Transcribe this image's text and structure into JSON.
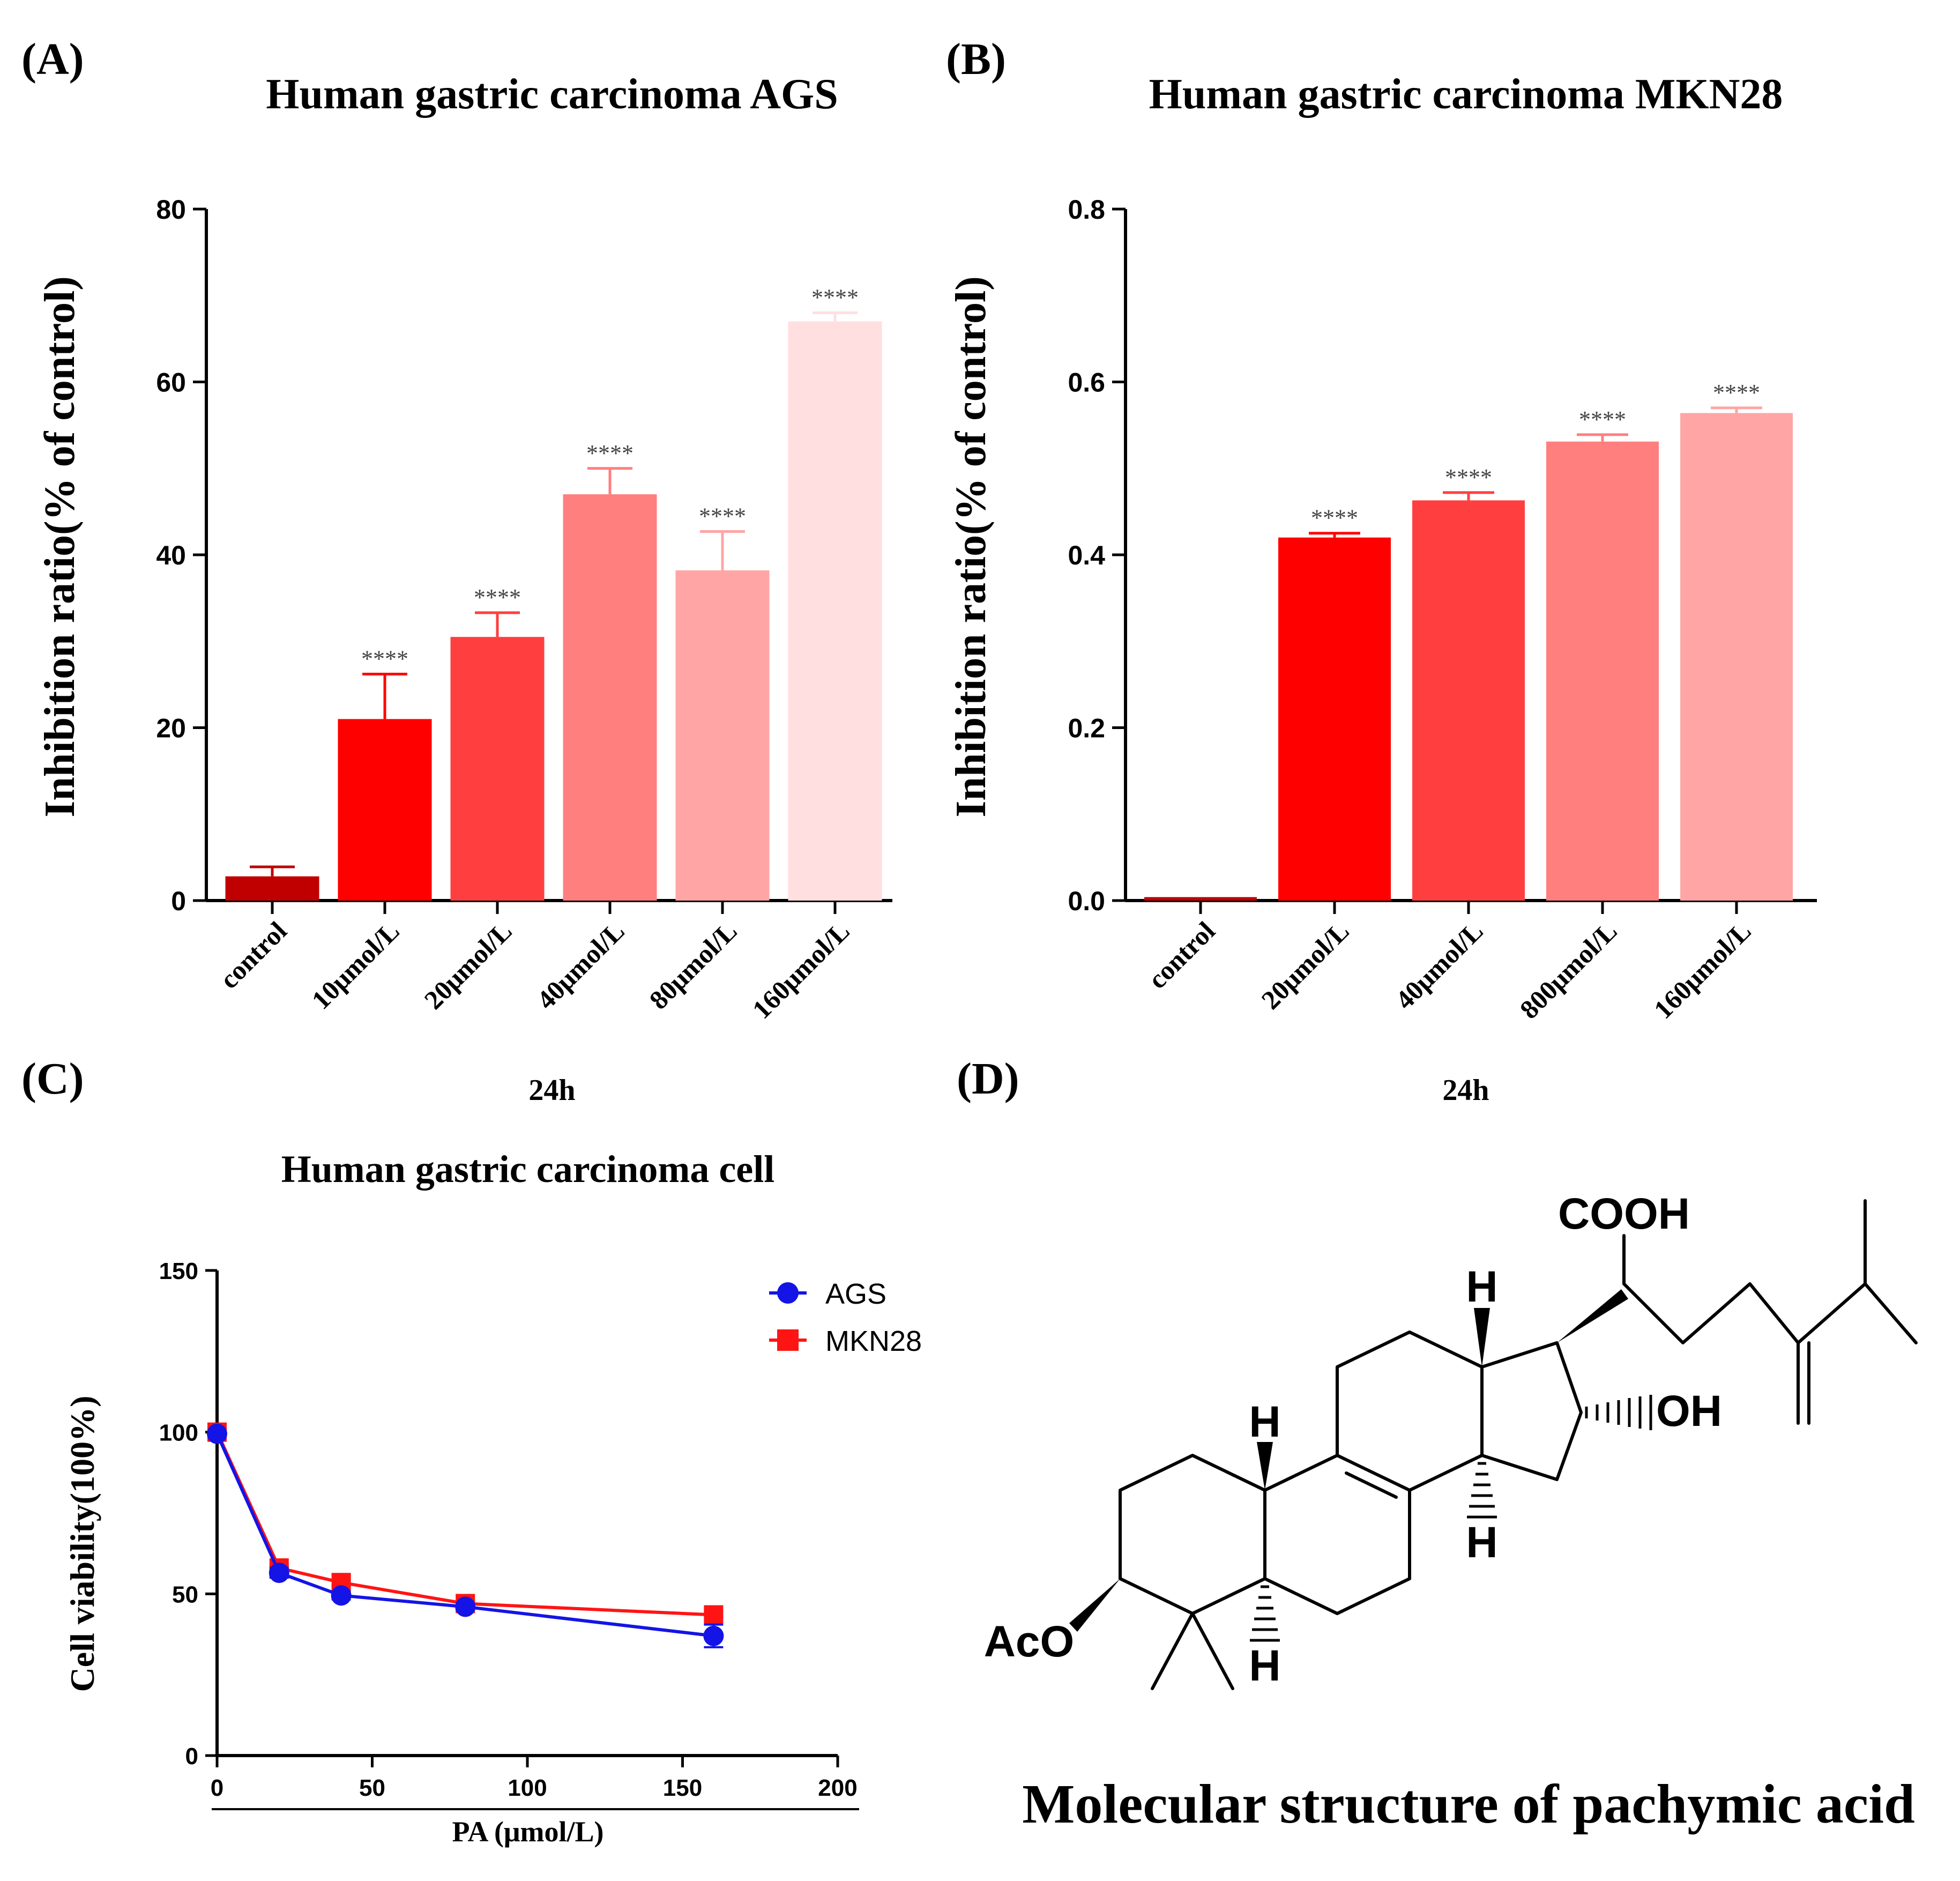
{
  "panels": {
    "a": {
      "label": "(A)",
      "title": "Human gastric carcinoma AGS",
      "xlabel": "24h"
    },
    "b": {
      "label": "(B)",
      "title": "Human gastric carcinoma MKN28",
      "xlabel": "24h"
    },
    "c": {
      "label": "(C)",
      "title": "Human gastric carcinoma cell"
    },
    "d": {
      "label": "(D)",
      "caption": "Molecular structure of pachymic acid",
      "structure_labels": {
        "cooh": "COOH",
        "oh": "OH",
        "aco": "AcO",
        "h": "H"
      }
    }
  },
  "chart_data": [
    {
      "id": "A",
      "type": "bar",
      "title": "Human gastric carcinoma AGS",
      "xlabel": "24h",
      "ylabel": "Inhibition ratio(% of control)",
      "ylim": [
        0,
        80
      ],
      "yticks": [
        0,
        20,
        40,
        60,
        80
      ],
      "categories": [
        "control",
        "10μmol/L",
        "20μmol/L",
        "40μmol/L",
        "80μmol/L",
        "160μmol/L"
      ],
      "values": [
        2.8,
        21.0,
        30.5,
        47.0,
        38.2,
        67.0
      ],
      "errors": [
        1.1,
        5.2,
        2.8,
        3.0,
        4.5,
        1.0
      ],
      "annotations": [
        "",
        "****",
        "****",
        "****",
        "****",
        "****"
      ],
      "colors": [
        "#c00000",
        "#ff0000",
        "#ff3f3f",
        "#ff7f7f",
        "#ffa5a5",
        "#ffdfe0"
      ]
    },
    {
      "id": "B",
      "type": "bar",
      "title": "Human gastric carcinoma MKN28",
      "xlabel": "24h",
      "ylabel": "Inhibition ratio(% of control)",
      "ylim": [
        0,
        0.8
      ],
      "yticks": [
        "0.0",
        "0.2",
        "0.4",
        "0.6",
        "0.8"
      ],
      "categories": [
        "control",
        "20μmol/L",
        "40μmol/L",
        "800μmol/L",
        "160μmol/L"
      ],
      "values": [
        0.004,
        0.42,
        0.463,
        0.531,
        0.564
      ],
      "errors": [
        0.0,
        0.005,
        0.009,
        0.008,
        0.006
      ],
      "annotations": [
        "",
        "****",
        "****",
        "****",
        "****"
      ],
      "colors": [
        "#c00000",
        "#ff0000",
        "#ff3f3f",
        "#ff7f7f",
        "#ffa5a5"
      ]
    },
    {
      "id": "C",
      "type": "line",
      "title": "Human gastric carcinoma cell",
      "xlabel": "PA (μmol/L)",
      "ylabel": "Cell viability(100%)",
      "xlim": [
        0,
        200
      ],
      "ylim": [
        0,
        150
      ],
      "xticks": [
        0,
        50,
        100,
        150,
        200
      ],
      "yticks": [
        0,
        50,
        100,
        150
      ],
      "legend_position": "top-right",
      "series": [
        {
          "name": "AGS",
          "color": "#1414e6",
          "marker": "circle",
          "x": [
            0,
            20,
            40,
            80,
            160
          ],
          "y": [
            99.5,
            56.5,
            49.5,
            46.0,
            37.0
          ],
          "errors": [
            1.0,
            1.5,
            1.2,
            1.0,
            3.5
          ]
        },
        {
          "name": "MKN28",
          "color": "#ff1414",
          "marker": "square",
          "x": [
            0,
            20,
            40,
            80,
            160
          ],
          "y": [
            100.0,
            58.0,
            53.5,
            47.0,
            43.5
          ],
          "errors": [
            0.5,
            0.8,
            0.8,
            0.7,
            0.8
          ]
        }
      ]
    }
  ]
}
